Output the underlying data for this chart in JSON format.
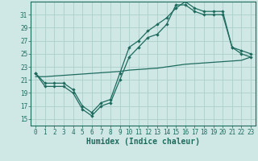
{
  "xlabel": "Humidex (Indice chaleur)",
  "background_color": "#cfe8e6",
  "grid_color": "#aacfcc",
  "line_color": "#1e6b5e",
  "xlim": [
    -0.5,
    23.5
  ],
  "ylim": [
    14.0,
    33.0
  ],
  "yticks": [
    15,
    17,
    19,
    21,
    23,
    25,
    27,
    29,
    31
  ],
  "xticks": [
    0,
    1,
    2,
    3,
    4,
    5,
    6,
    7,
    8,
    9,
    10,
    11,
    12,
    13,
    14,
    15,
    16,
    17,
    18,
    19,
    20,
    21,
    22,
    23
  ],
  "series1_x": [
    0,
    1,
    2,
    3,
    4,
    5,
    6,
    7,
    8,
    9,
    10,
    11,
    12,
    13,
    14,
    15,
    16,
    17,
    18,
    19,
    20,
    21,
    22,
    23
  ],
  "series1_y": [
    22,
    20,
    20,
    20,
    19,
    16.5,
    15.5,
    17,
    17.5,
    21,
    24.5,
    26,
    27.5,
    28,
    29.5,
    32.5,
    32.5,
    31.5,
    31,
    31,
    31,
    26,
    25,
    24.5
  ],
  "series2_x": [
    0,
    1,
    2,
    3,
    4,
    5,
    6,
    7,
    8,
    9,
    10,
    11,
    12,
    13,
    14,
    15,
    16,
    17,
    18,
    19,
    20,
    21,
    22,
    23
  ],
  "series2_y": [
    22,
    20.5,
    20.5,
    20.5,
    19.5,
    17,
    16,
    17.5,
    18,
    22,
    26,
    27,
    28.5,
    29.5,
    30.5,
    32,
    33,
    32,
    31.5,
    31.5,
    31.5,
    26,
    25.5,
    25
  ],
  "series3_x": [
    0,
    1,
    2,
    3,
    4,
    5,
    6,
    7,
    8,
    9,
    10,
    11,
    12,
    13,
    14,
    15,
    16,
    17,
    18,
    19,
    20,
    21,
    22,
    23
  ],
  "series3_y": [
    21.5,
    21.5,
    21.6,
    21.7,
    21.8,
    21.9,
    22.0,
    22.1,
    22.2,
    22.3,
    22.5,
    22.6,
    22.7,
    22.8,
    23.0,
    23.2,
    23.4,
    23.5,
    23.6,
    23.7,
    23.8,
    23.9,
    24.0,
    24.5
  ],
  "tick_fontsize": 5.5,
  "xlabel_fontsize": 7.0
}
